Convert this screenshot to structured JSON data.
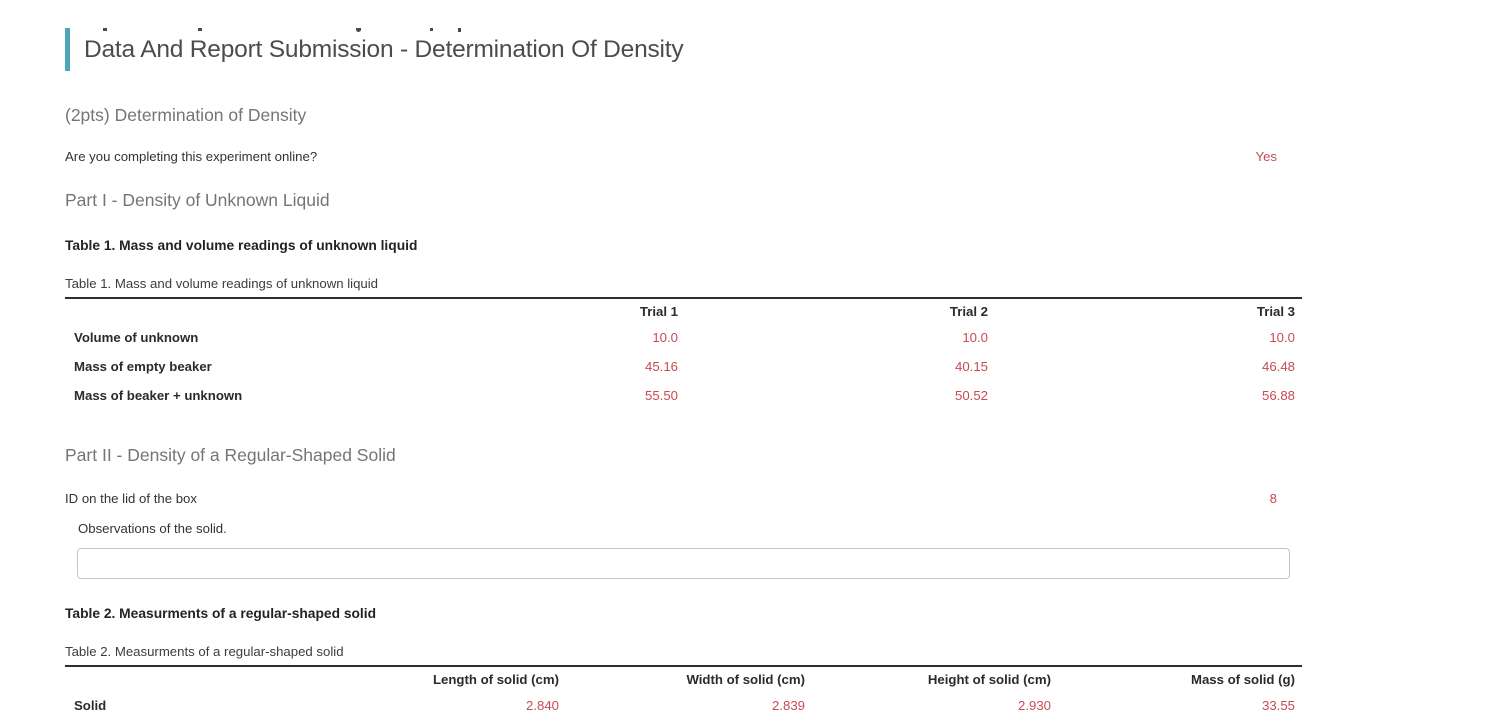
{
  "page": {
    "title": "Data And Report Submission - Determination Of Density",
    "points_heading": "(2pts) Determination of Density"
  },
  "colors": {
    "accent_teal": "#4ba6b8",
    "answer_red": "#c94a53"
  },
  "questions": {
    "online": {
      "label": "Are you completing this experiment online?",
      "answer": "Yes"
    },
    "box_id": {
      "label": "ID on the lid of the box",
      "answer": "8"
    },
    "observations": {
      "label": "Observations of the solid.",
      "value": "",
      "placeholder": ""
    }
  },
  "part1": {
    "heading": "Part I - Density of Unknown Liquid",
    "caption_bold": "Table 1. Mass and volume readings of unknown liquid",
    "caption_light": "Table 1. Mass and volume readings of unknown liquid",
    "table": {
      "columns": [
        "",
        "Trial 1",
        "Trial 2",
        "Trial 3"
      ],
      "rows": [
        {
          "label": "Volume of unknown",
          "values": [
            "10.0",
            "10.0",
            "10.0"
          ]
        },
        {
          "label": "Mass of empty beaker",
          "values": [
            "45.16",
            "40.15",
            "46.48"
          ]
        },
        {
          "label": "Mass of beaker + unknown",
          "values": [
            "55.50",
            "50.52",
            "56.88"
          ]
        }
      ]
    }
  },
  "part2": {
    "heading": "Part II - Density of a Regular-Shaped Solid",
    "caption_bold": "Table 2. Measurments of a regular-shaped solid",
    "caption_light": "Table 2. Measurments of a regular-shaped solid",
    "table": {
      "columns": [
        "",
        "Length of solid (cm)",
        "Width of solid (cm)",
        "Height of solid (cm)",
        "Mass of solid (g)"
      ],
      "rows": [
        {
          "label": "Solid",
          "values": [
            "2.840",
            "2.839",
            "2.930",
            "33.55"
          ]
        }
      ]
    }
  }
}
